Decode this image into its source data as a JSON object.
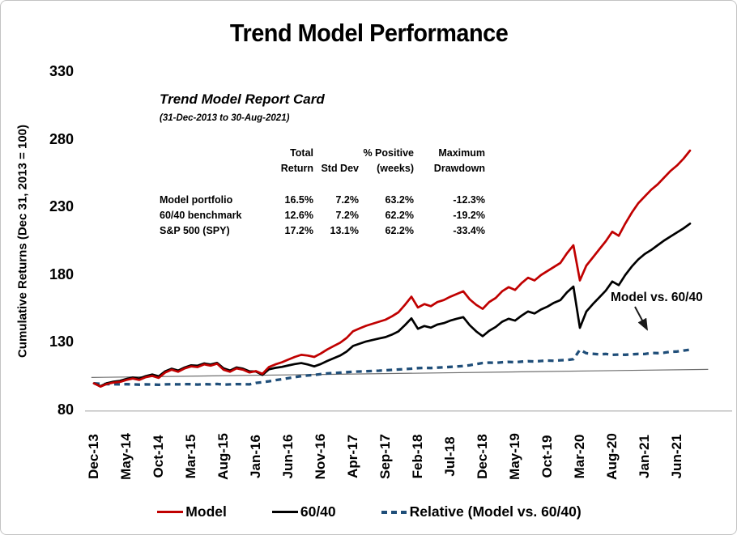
{
  "window": {
    "background": "#FFFFFF",
    "border_color": "#C3C3C3"
  },
  "chart_data": {
    "type": "line",
    "title": "Trend Model Performance",
    "period": {
      "start": "31-Dec-2013",
      "end": "30-Aug-2021",
      "frequency": "monthly"
    },
    "y_axis": {
      "label": "Cumulative Returns (Dec 31, 2013 = 100)",
      "min": 80,
      "max": 330,
      "ticks": [
        330,
        280,
        230,
        180,
        130,
        80
      ]
    },
    "x_axis": {
      "tick_labels": [
        "Dec-13",
        "May-14",
        "Oct-14",
        "Mar-15",
        "Aug-15",
        "Jan-16",
        "Jun-16",
        "Nov-16",
        "Apr-17",
        "Sep-17",
        "Feb-18",
        "Jul-18",
        "Dec-18",
        "May-19",
        "Oct-19",
        "Mar-20",
        "Aug-20",
        "Jan-21",
        "Jun-21"
      ]
    },
    "grid": "off",
    "legend_position": "bottom",
    "series": [
      {
        "name": "Model",
        "color": "#C00000",
        "style": "solid",
        "monthly_values": [
          100,
          97.5,
          99.5,
          100.5,
          101,
          102.5,
          103.5,
          102.5,
          104.5,
          105.5,
          104,
          108,
          110,
          108.5,
          111,
          112.5,
          112,
          114,
          113,
          114.5,
          110,
          108.5,
          111,
          110,
          108,
          109,
          107,
          112,
          114,
          115.5,
          117.5,
          119.5,
          121,
          120.5,
          119.5,
          122,
          125,
          127.5,
          130,
          133.5,
          138.5,
          140.5,
          142.5,
          144,
          145.5,
          147,
          149.5,
          152.5,
          158,
          164,
          156,
          158.5,
          157,
          160,
          161.5,
          164,
          166,
          168,
          162,
          158,
          155,
          160,
          163,
          168,
          171,
          169,
          174,
          178,
          176,
          180,
          183,
          186,
          189,
          196,
          202,
          176,
          187,
          193,
          199,
          205,
          212,
          209,
          218,
          226,
          233,
          238,
          243,
          247,
          252,
          257,
          261,
          266,
          272
        ]
      },
      {
        "name": "60/40",
        "color": "#000000",
        "style": "solid",
        "monthly_values": [
          100,
          97.9,
          100.1,
          101.2,
          101.8,
          103.2,
          104.3,
          103.5,
          105.3,
          106.5,
          105.2,
          108.9,
          110.8,
          109.4,
          111.7,
          113.3,
          113,
          114.7,
          113.9,
          115.1,
          111.1,
          109.4,
          111.7,
          110.8,
          108.9,
          108.7,
          106.2,
          110.3,
          111.4,
          112.1,
          113.2,
          114.2,
          114.9,
          113.9,
          112.5,
          114.2,
          116.5,
          118.5,
          120.5,
          123.4,
          127.6,
          129.3,
          130.9,
          132,
          133.1,
          134.1,
          136,
          138.4,
          143,
          148,
          140.3,
          142.3,
          141.1,
          143.4,
          144.5,
          146.3,
          147.7,
          148.9,
          142.9,
          138.4,
          134.8,
          138.8,
          141.6,
          145.5,
          147.7,
          146.3,
          150,
          153.1,
          151.6,
          154.5,
          156.7,
          159.5,
          161.5,
          167.2,
          171.5,
          141,
          153,
          158.5,
          163.5,
          168.5,
          175.2,
          172.5,
          180,
          186.2,
          191.5,
          195.5,
          198.5,
          202,
          205.5,
          208.5,
          211.5,
          214.5,
          218
        ]
      },
      {
        "name": "Relative (Model vs. 60/40)",
        "color": "#1F4E79",
        "style": "dashed",
        "monthly_values": [
          100,
          99.6,
          99.4,
          99.3,
          99.2,
          99.3,
          99.2,
          99,
          99.2,
          99.1,
          98.9,
          99.2,
          99.3,
          99.2,
          99.4,
          99.3,
          99.1,
          99.4,
          99.2,
          99.5,
          99,
          99.2,
          99.4,
          99.3,
          99.2,
          100.3,
          100.8,
          101.5,
          102.3,
          103,
          103.8,
          104.6,
          105.3,
          105.8,
          106.2,
          106.8,
          107.3,
          107.6,
          107.9,
          108.2,
          108.5,
          108.7,
          108.9,
          109.1,
          109.3,
          109.6,
          109.9,
          110.2,
          110.5,
          110.8,
          111.2,
          111.4,
          111.3,
          111.6,
          111.8,
          112.1,
          112.4,
          112.8,
          113.4,
          114.2,
          115,
          115.3,
          115.1,
          115.5,
          115.8,
          115.5,
          116,
          116.3,
          116.1,
          116.5,
          116.8,
          116.6,
          117,
          117.2,
          117.8,
          124.8,
          122.2,
          121.8,
          121.4,
          121.7,
          121,
          121.2,
          121.1,
          121.4,
          121.7,
          121.6,
          122.4,
          122.3,
          122.6,
          123.3,
          123.5,
          124.2,
          124.8
        ]
      }
    ],
    "baseline": {
      "description": "thin reference trend line",
      "color": "#6E6E6E",
      "start_month": -0.4,
      "start_value": 104.3,
      "end_month": 94.8,
      "end_value": 110.3
    },
    "axis_line_color": "#BFBFBF",
    "annotation": {
      "text": "Model vs. 60/40"
    }
  },
  "report_card": {
    "title": "Trend Model Report Card",
    "subtitle": "(31-Dec-2013 to 30-Aug-2021)",
    "column_header_line1": [
      "Total",
      "",
      "% Positive",
      "Maximum"
    ],
    "column_header_line2": [
      "Return",
      "Std Dev",
      "(weeks)",
      "Drawdown"
    ],
    "rows": [
      {
        "label": "Model portfolio",
        "values": [
          "16.5%",
          "7.2%",
          "63.2%",
          "-12.3%"
        ]
      },
      {
        "label": "60/40 benchmark",
        "values": [
          "12.6%",
          "7.2%",
          "62.2%",
          "-19.2%"
        ]
      },
      {
        "label": "S&P 500 (SPY)",
        "values": [
          "17.2%",
          "13.1%",
          "62.2%",
          "-33.4%"
        ]
      }
    ]
  }
}
